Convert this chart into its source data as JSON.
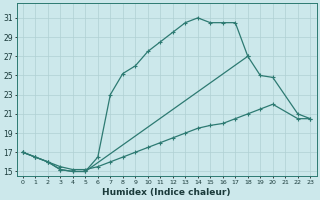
{
  "xlabel": "Humidex (Indice chaleur)",
  "background_color": "#cce8eb",
  "grid_color": "#b0d0d4",
  "line_color": "#2d7a72",
  "line1_x": [
    0,
    1,
    2,
    3,
    4,
    5,
    6,
    7,
    8,
    9,
    10,
    11,
    12,
    13,
    14,
    15,
    16,
    17,
    18
  ],
  "line1_y": [
    17.0,
    16.5,
    16.0,
    15.2,
    15.0,
    15.0,
    16.5,
    23.0,
    25.2,
    26.0,
    27.5,
    28.5,
    29.5,
    30.5,
    31.0,
    30.5,
    30.5,
    30.5,
    27.0
  ],
  "line2_x": [
    0,
    1,
    2,
    3,
    4,
    5,
    18,
    19,
    20,
    22,
    23
  ],
  "line2_y": [
    17.0,
    16.5,
    16.0,
    15.2,
    15.0,
    15.0,
    27.0,
    25.0,
    24.8,
    21.0,
    20.5
  ],
  "line3_x": [
    0,
    1,
    2,
    3,
    4,
    5,
    6,
    7,
    8,
    9,
    10,
    11,
    12,
    13,
    14,
    15,
    16,
    17,
    18,
    19,
    20,
    22,
    23
  ],
  "line3_y": [
    17.0,
    16.5,
    16.0,
    15.5,
    15.2,
    15.2,
    15.5,
    16.0,
    16.5,
    17.0,
    17.5,
    18.0,
    18.5,
    19.0,
    19.5,
    19.8,
    20.0,
    20.5,
    21.0,
    21.5,
    22.0,
    20.5,
    20.5
  ],
  "ylim": [
    14.5,
    32.5
  ],
  "xlim": [
    -0.5,
    23.5
  ],
  "yticks": [
    15,
    17,
    19,
    21,
    23,
    25,
    27,
    29,
    31
  ],
  "xticks": [
    0,
    1,
    2,
    3,
    4,
    5,
    6,
    7,
    8,
    9,
    10,
    11,
    12,
    13,
    14,
    15,
    16,
    17,
    18,
    19,
    20,
    21,
    22,
    23
  ]
}
